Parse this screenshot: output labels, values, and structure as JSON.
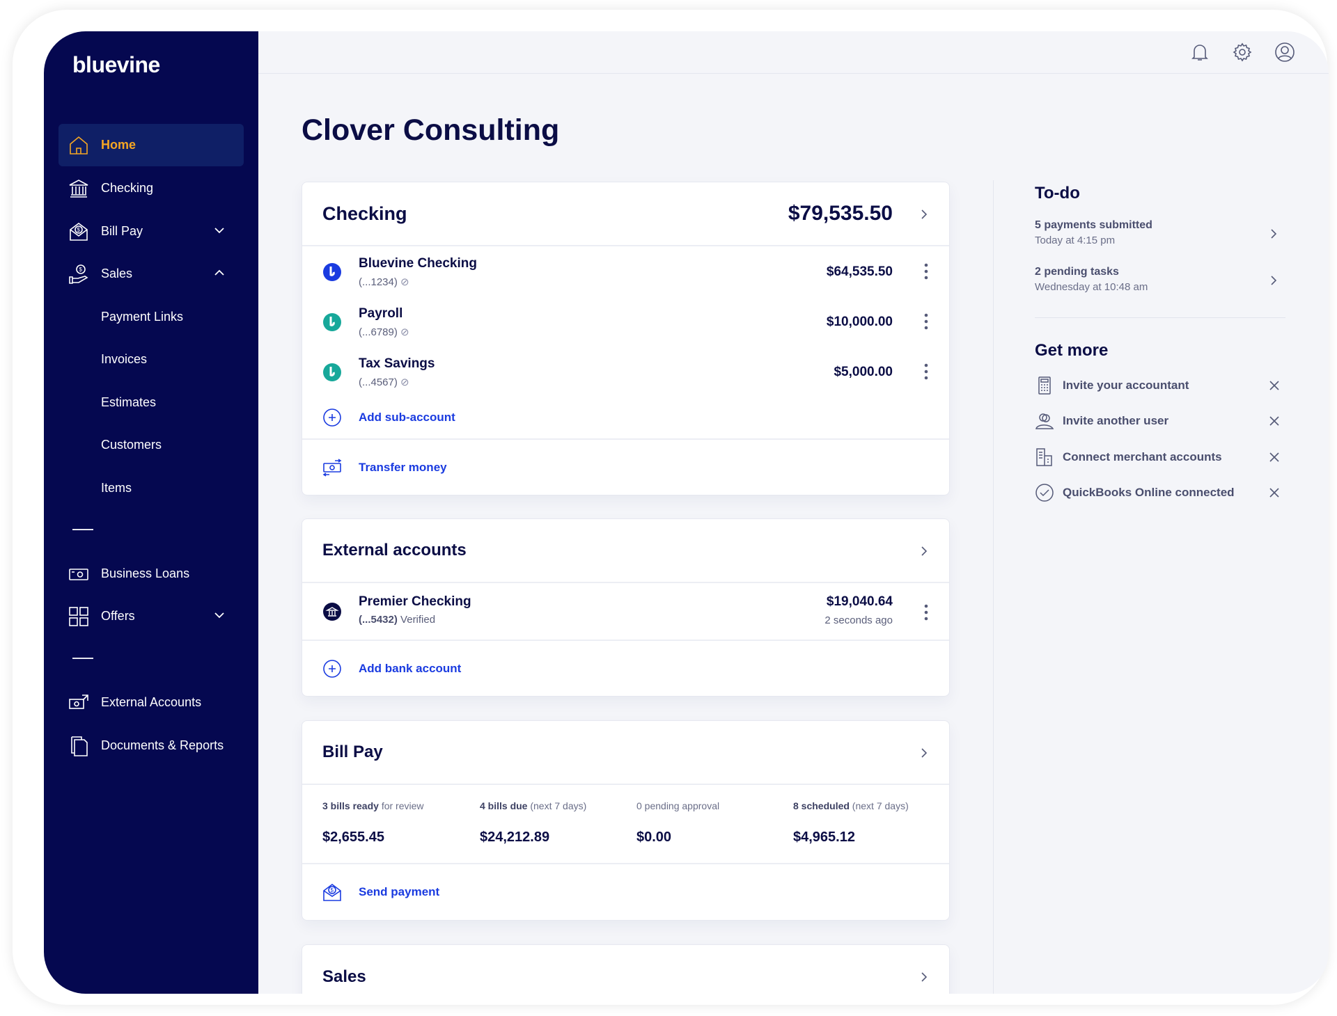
{
  "brand": {
    "logo": "bluevine",
    "sidebar_color": "#050850",
    "accent": "#f5a623",
    "link_color": "#1a3be0"
  },
  "sidebar": {
    "items": [
      {
        "label": "Home",
        "icon": "home-icon",
        "active": true
      },
      {
        "label": "Checking",
        "icon": "bank-icon"
      },
      {
        "label": "Bill Pay",
        "icon": "bill-pay-icon",
        "chevron": "down"
      },
      {
        "label": "Sales",
        "icon": "sales-icon",
        "chevron": "up"
      },
      {
        "label": "Payment Links"
      },
      {
        "label": "Invoices"
      },
      {
        "label": "Estimates"
      },
      {
        "label": "Customers"
      },
      {
        "label": "Items"
      },
      {
        "label": "Business Loans",
        "icon": "loans-icon"
      },
      {
        "label": "Offers",
        "icon": "grid-icon",
        "chevron": "down"
      },
      {
        "label": "External Accounts",
        "icon": "external-accounts-icon"
      },
      {
        "label": "Documents & Reports",
        "icon": "documents-icon"
      }
    ]
  },
  "header": {
    "icons": [
      "bell-icon",
      "gear-icon",
      "user-icon"
    ]
  },
  "page_title": "Clover Consulting",
  "checking": {
    "title": "Checking",
    "total": "$79,535.50",
    "accounts": [
      {
        "name": "Bluevine Checking",
        "number": "(...1234)",
        "amount": "$64,535.50",
        "color": "#1a3be0"
      },
      {
        "name": "Payroll",
        "number": "(...6789)",
        "amount": "$10,000.00",
        "color": "#17a89a"
      },
      {
        "name": "Tax Savings",
        "number": "(...4567)",
        "amount": "$5,000.00",
        "color": "#17a89a"
      }
    ],
    "add_sub_account": "Add sub-account",
    "transfer_money": "Transfer money"
  },
  "external": {
    "title": "External accounts",
    "accounts": [
      {
        "name": "Premier Checking",
        "number": "(...5432)",
        "status": "Verified",
        "amount": "$19,040.64",
        "updated": "2 seconds ago"
      }
    ],
    "add_bank_account": "Add bank account"
  },
  "bill_pay": {
    "title": "Bill Pay",
    "stats": [
      {
        "bold": "3 bills ready",
        "rest": " for review",
        "value": "$2,655.45"
      },
      {
        "bold": "4 bills due",
        "rest": " (next 7 days)",
        "value": "$24,212.89"
      },
      {
        "bold": "",
        "rest": "0 pending approval",
        "value": "$0.00"
      },
      {
        "bold": "8 scheduled",
        "rest": " (next 7 days)",
        "value": "$4,965.12"
      }
    ],
    "send_payment": "Send payment"
  },
  "sales": {
    "title": "Sales"
  },
  "todo": {
    "title": "To-do",
    "items": [
      {
        "title": "5 payments submitted",
        "time": "Today at 4:15 pm"
      },
      {
        "title": "2 pending tasks",
        "time": "Wednesday at 10:48 am"
      }
    ]
  },
  "get_more": {
    "title": "Get more",
    "items": [
      {
        "label": "Invite your accountant",
        "icon": "calculator-icon"
      },
      {
        "label": "Invite another user",
        "icon": "users-icon"
      },
      {
        "label": "Connect merchant accounts",
        "icon": "building-icon"
      },
      {
        "label": "QuickBooks Online connected",
        "icon": "check-circle-icon"
      }
    ]
  }
}
